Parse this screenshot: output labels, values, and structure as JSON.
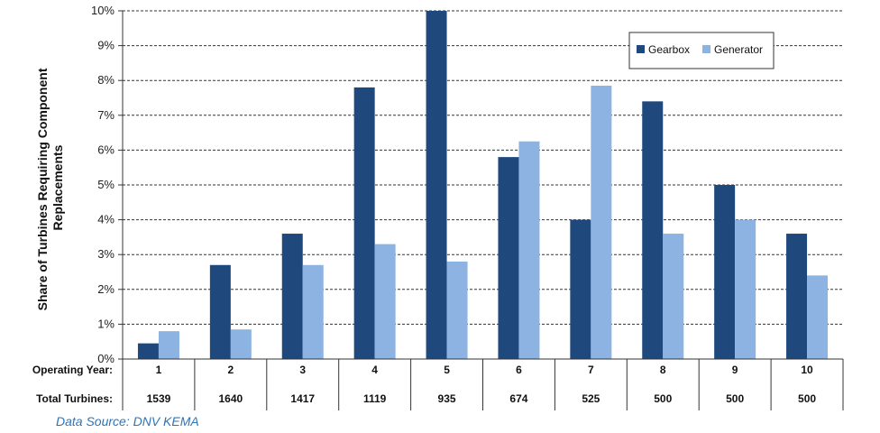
{
  "chart_data": {
    "type": "bar",
    "ylabel": "Share of Turbines Requiring Component Replacements",
    "ylim": [
      0,
      10
    ],
    "yticks": [
      "0%",
      "1%",
      "2%",
      "3%",
      "4%",
      "5%",
      "6%",
      "7%",
      "8%",
      "9%",
      "10%"
    ],
    "grid": true,
    "legend_position": "top-right",
    "categories": [
      "1",
      "2",
      "3",
      "4",
      "5",
      "6",
      "7",
      "8",
      "9",
      "10"
    ],
    "series": [
      {
        "name": "Gearbox",
        "color": "#1f497d",
        "values": [
          0.45,
          2.7,
          3.6,
          7.8,
          10.0,
          5.8,
          4.0,
          7.4,
          5.0,
          3.6
        ]
      },
      {
        "name": "Generator",
        "color": "#8db3e2",
        "values": [
          0.8,
          0.85,
          2.7,
          3.3,
          2.8,
          6.25,
          7.85,
          3.6,
          4.0,
          2.4
        ]
      }
    ],
    "table": {
      "row1_label": "Operating Year:",
      "row2_label": "Total Turbines:",
      "total_turbines": [
        "1539",
        "1640",
        "1417",
        "1119",
        "935",
        "674",
        "525",
        "500",
        "500",
        "500"
      ]
    }
  },
  "source_note": "Data Source: DNV KEMA"
}
